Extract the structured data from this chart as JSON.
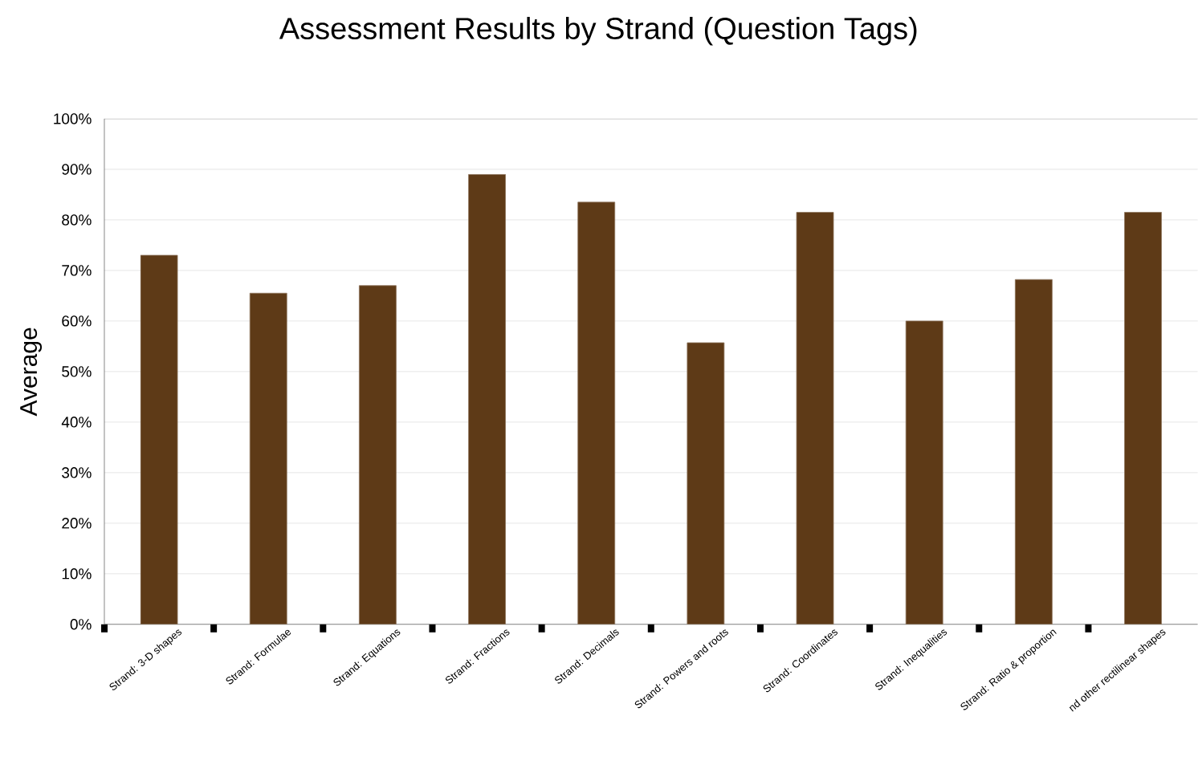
{
  "chart_data": {
    "type": "bar",
    "title": "Assessment Results by Strand (Question Tags)",
    "ylabel": "Average",
    "categories": [
      "Strand: 3-D shapes",
      "Strand: Formulae",
      "Strand: Equations",
      "Strand: Fractions",
      "Strand: Decimals",
      "Strand: Powers and roots",
      "Strand: Coordinates",
      "Strand: Inequalities",
      "Strand: Ratio & proportion",
      "nd other rectilinear shapes"
    ],
    "values": [
      73,
      65.5,
      67,
      89,
      83.5,
      55.7,
      81.5,
      60,
      68.2,
      81.5
    ],
    "color": "#5e3a17",
    "ylim": [
      0,
      100
    ],
    "yticks": [
      {
        "value": 0,
        "label": "0%"
      },
      {
        "value": 10,
        "label": "10%"
      },
      {
        "value": 20,
        "label": "20%"
      },
      {
        "value": 30,
        "label": "30%"
      },
      {
        "value": 40,
        "label": "40%"
      },
      {
        "value": 50,
        "label": "50%"
      },
      {
        "value": 60,
        "label": "60%"
      },
      {
        "value": 70,
        "label": "70%"
      },
      {
        "value": 80,
        "label": "80%"
      },
      {
        "value": 90,
        "label": "90%"
      },
      {
        "value": 100,
        "label": "100%"
      }
    ],
    "grid": "y"
  }
}
